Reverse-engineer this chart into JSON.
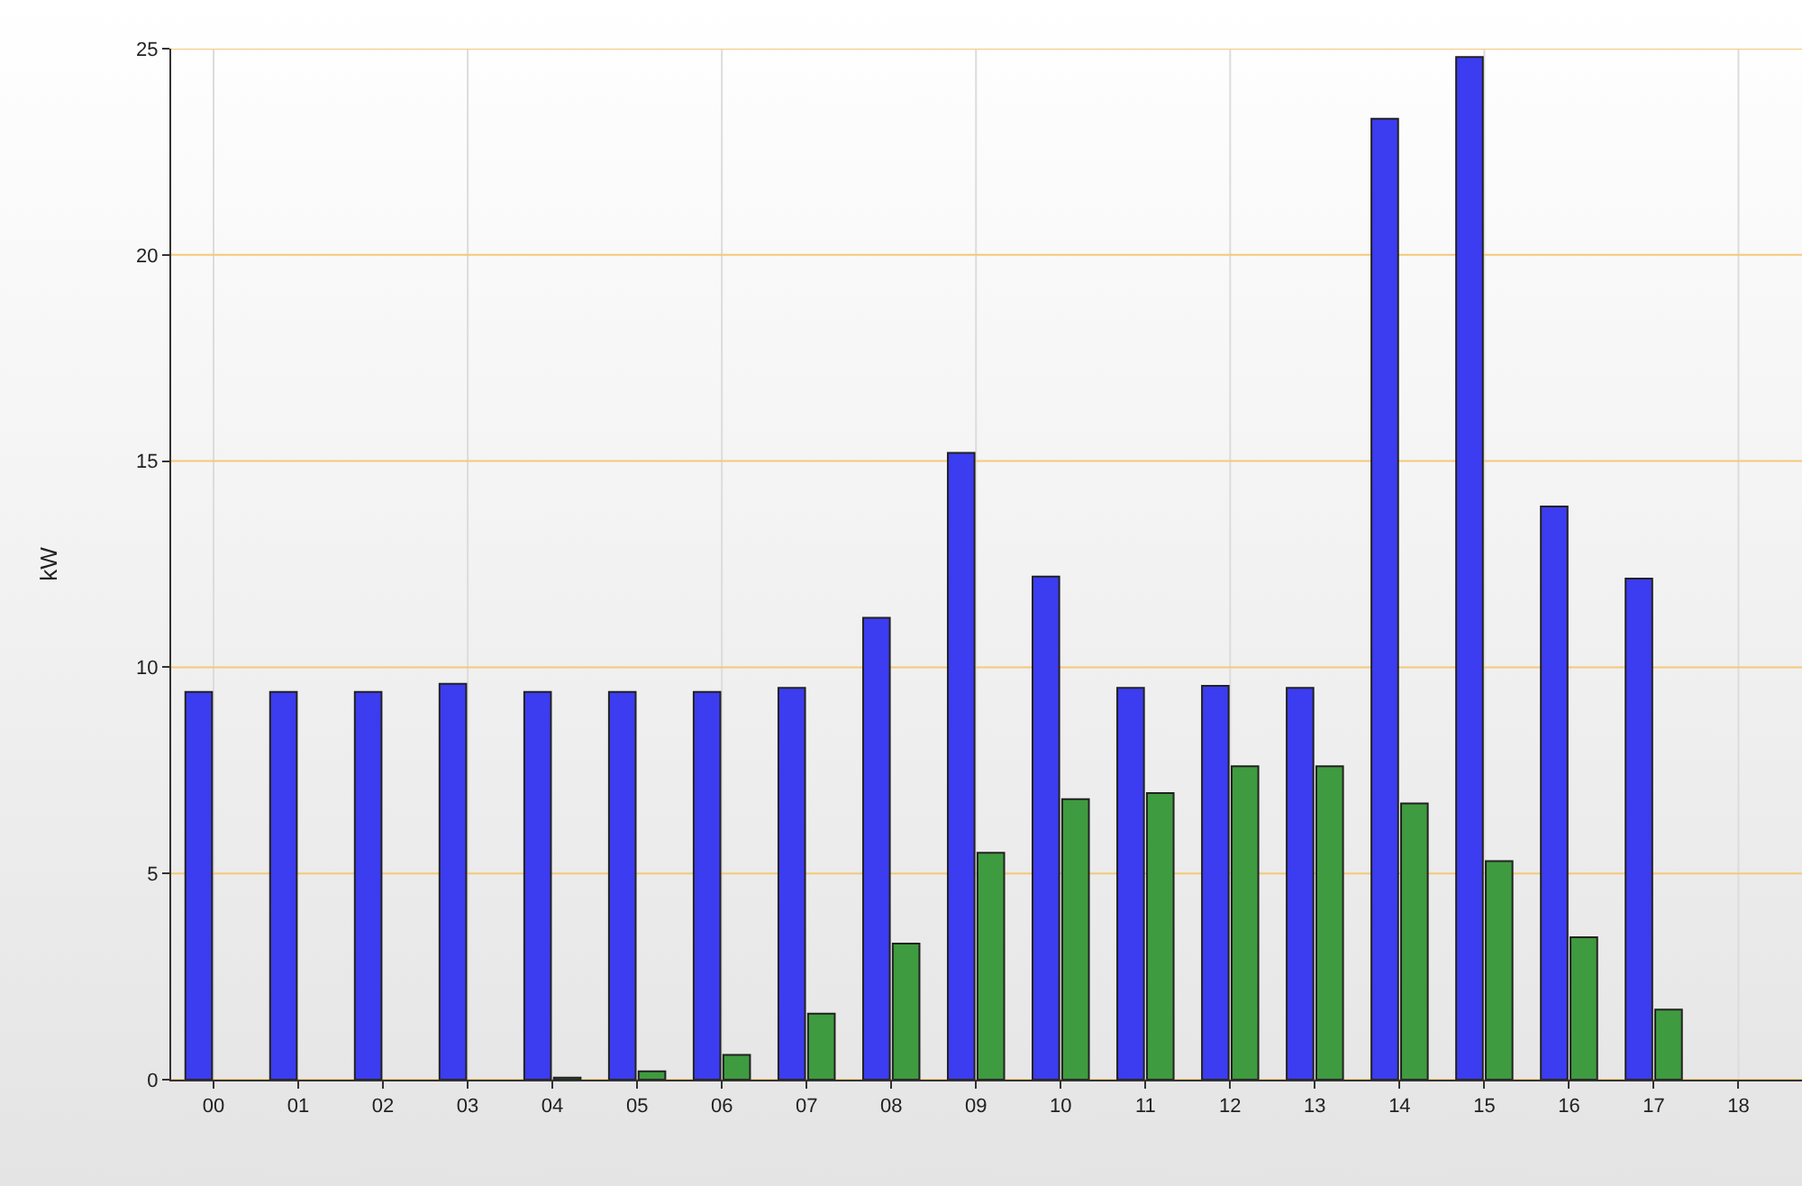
{
  "chart_data": {
    "type": "bar",
    "ylabel": "kW",
    "categories": [
      "00",
      "01",
      "02",
      "03",
      "04",
      "05",
      "06",
      "07",
      "08",
      "09",
      "10",
      "11",
      "12",
      "13",
      "14",
      "15",
      "16",
      "17",
      "18"
    ],
    "series": [
      {
        "color": "#3c3cf0",
        "values": [
          9.4,
          9.4,
          9.4,
          9.6,
          9.4,
          9.4,
          9.4,
          9.5,
          11.2,
          15.2,
          12.2,
          9.5,
          9.55,
          9.5,
          23.3,
          24.8,
          13.9,
          12.15,
          null
        ]
      },
      {
        "color": "#3f9b3f",
        "values": [
          null,
          null,
          null,
          null,
          0.05,
          0.2,
          0.6,
          1.6,
          3.3,
          5.5,
          6.8,
          6.95,
          7.6,
          7.6,
          6.7,
          5.3,
          3.45,
          1.7,
          null
        ]
      }
    ],
    "ylim": [
      0,
      25
    ],
    "yticks": [
      0,
      5,
      10,
      15,
      20,
      25
    ],
    "grid": true
  }
}
